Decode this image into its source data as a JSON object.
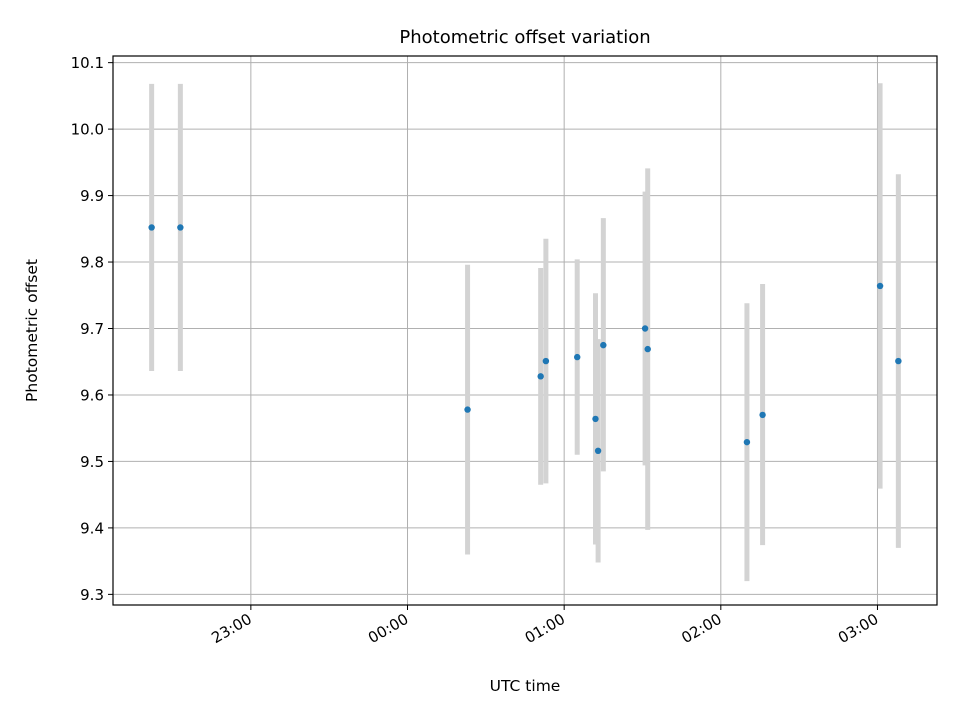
{
  "chart_data": {
    "type": "scatter",
    "title": "Photometric offset variation",
    "xlabel": "UTC time",
    "ylabel": "Photometric offset",
    "x_tick_labels": [
      "23:00",
      "00:00",
      "01:00",
      "02:00",
      "03:00"
    ],
    "x_tick_hours": [
      23,
      24,
      25,
      26,
      27
    ],
    "xlim_hours": [
      22.12,
      27.38
    ],
    "y_ticks": [
      9.3,
      9.4,
      9.5,
      9.6,
      9.7,
      9.8,
      9.9,
      10.0,
      10.1
    ],
    "ylim": [
      9.284,
      10.11
    ],
    "grid": true,
    "marker_color": "#1f77b4",
    "errorbar_color": "#d3d3d3",
    "points": [
      {
        "time": "22:22",
        "y": 9.852,
        "ylow": 9.636,
        "yhigh": 10.068
      },
      {
        "time": "22:33",
        "y": 9.852,
        "ylow": 9.636,
        "yhigh": 10.068
      },
      {
        "time": "00:23",
        "y": 9.578,
        "ylow": 9.36,
        "yhigh": 9.796
      },
      {
        "time": "00:51",
        "y": 9.628,
        "ylow": 9.465,
        "yhigh": 9.791
      },
      {
        "time": "00:53",
        "y": 9.651,
        "ylow": 9.467,
        "yhigh": 9.835
      },
      {
        "time": "01:05",
        "y": 9.657,
        "ylow": 9.51,
        "yhigh": 9.804
      },
      {
        "time": "01:12",
        "y": 9.564,
        "ylow": 9.375,
        "yhigh": 9.753
      },
      {
        "time": "01:13",
        "y": 9.516,
        "ylow": 9.348,
        "yhigh": 9.684
      },
      {
        "time": "01:15",
        "y": 9.675,
        "ylow": 9.485,
        "yhigh": 9.866
      },
      {
        "time": "01:31",
        "y": 9.7,
        "ylow": 9.494,
        "yhigh": 9.906
      },
      {
        "time": "01:32",
        "y": 9.669,
        "ylow": 9.397,
        "yhigh": 9.941
      },
      {
        "time": "02:10",
        "y": 9.529,
        "ylow": 9.32,
        "yhigh": 9.738
      },
      {
        "time": "02:16",
        "y": 9.57,
        "ylow": 9.374,
        "yhigh": 9.767
      },
      {
        "time": "03:01",
        "y": 9.764,
        "ylow": 9.459,
        "yhigh": 10.069
      },
      {
        "time": "03:08",
        "y": 9.651,
        "ylow": 9.37,
        "yhigh": 9.932
      }
    ]
  }
}
